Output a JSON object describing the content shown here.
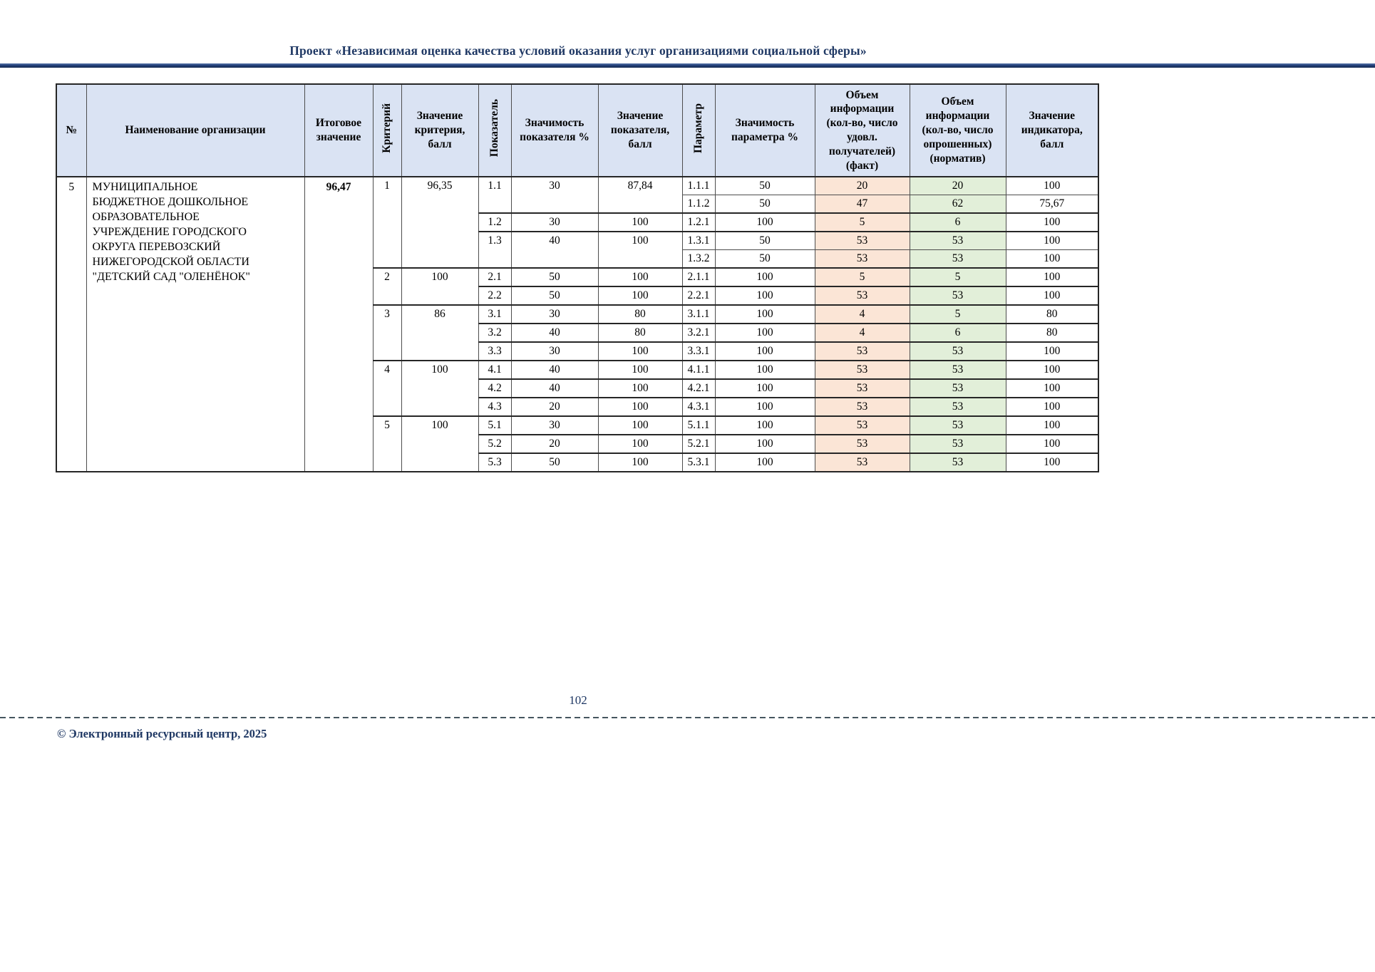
{
  "page": {
    "header_title": "Проект «Независимая оценка качества условий оказания услуг организациями социальной сферы»",
    "page_number": "102",
    "footer_copyright": "© Электронный ресурсный центр, 2025"
  },
  "colors": {
    "title_text": "#1f3864",
    "header_bg": "#dae3f3",
    "fact_column_bg": "#fbe5d6",
    "norm_column_bg": "#e2efd9",
    "rule_navy": "#24407a"
  },
  "table": {
    "columns": [
      {
        "key": "num",
        "label": "№",
        "vertical": false
      },
      {
        "key": "org-name",
        "label": "Наименование организации",
        "vertical": false
      },
      {
        "key": "total-value",
        "label": "Итоговое значение",
        "vertical": false
      },
      {
        "key": "criterion",
        "label": "Критерий",
        "vertical": true
      },
      {
        "key": "criterion-value",
        "label": "Значение критерия, балл",
        "vertical": false
      },
      {
        "key": "indicator",
        "label": "Показатель",
        "vertical": true
      },
      {
        "key": "indicator-weight",
        "label": "Значимость показателя %",
        "vertical": false
      },
      {
        "key": "indicator-value",
        "label": "Значение показателя, балл",
        "vertical": false
      },
      {
        "key": "parameter",
        "label": "Параметр",
        "vertical": true
      },
      {
        "key": "parameter-weight",
        "label": "Значимость параметра %",
        "vertical": false
      },
      {
        "key": "info-volume-fact",
        "label": "Объем информации (кол-во, число удовл. получателей) (факт)",
        "vertical": false
      },
      {
        "key": "info-volume-norm",
        "label": "Объем информации (кол-во, число опрошенных) (норматив)",
        "vertical": false
      },
      {
        "key": "indicator-score",
        "label": "Значение индикатора, балл",
        "vertical": false
      }
    ],
    "rows": [
      {
        "cells": [
          {
            "c": 0,
            "v": "5",
            "rs": 16
          },
          {
            "c": 1,
            "v": "МУНИЦИПАЛЬНОЕ\nБЮДЖЕТНОЕ ДОШКОЛЬНОЕ\nОБРАЗОВАТЕЛЬНОЕ\nУЧРЕЖДЕНИЕ ГОРОДСКОГО\nОКРУГА ПЕРЕВОЗСКИЙ\nНИЖЕГОРОДСКОЙ ОБЛАСТИ\n\"ДЕТСКИЙ САД \"ОЛЕНЁНОК\"",
            "rs": 16
          },
          {
            "c": 2,
            "v": "96,47",
            "rs": 16
          },
          {
            "c": 3,
            "v": "1",
            "rs": 5
          },
          {
            "c": 4,
            "v": "96,35",
            "rs": 5
          },
          {
            "c": 5,
            "v": "1.1",
            "rs": 2
          },
          {
            "c": 6,
            "v": "30",
            "rs": 2
          },
          {
            "c": 7,
            "v": "87,84",
            "rs": 2
          },
          {
            "c": 8,
            "v": "1.1.1"
          },
          {
            "c": 9,
            "v": "50"
          },
          {
            "c": 10,
            "v": "20"
          },
          {
            "c": 11,
            "v": "20"
          },
          {
            "c": 12,
            "v": "100"
          }
        ]
      },
      {
        "cells": [
          {
            "c": 8,
            "v": "1.1.2"
          },
          {
            "c": 9,
            "v": "50"
          },
          {
            "c": 10,
            "v": "47"
          },
          {
            "c": 11,
            "v": "62"
          },
          {
            "c": 12,
            "v": "75,67"
          }
        ]
      },
      {
        "sep": "heavy",
        "cells": [
          {
            "c": 5,
            "v": "1.2"
          },
          {
            "c": 6,
            "v": "30"
          },
          {
            "c": 7,
            "v": "100"
          },
          {
            "c": 8,
            "v": "1.2.1"
          },
          {
            "c": 9,
            "v": "100"
          },
          {
            "c": 10,
            "v": "5"
          },
          {
            "c": 11,
            "v": "6"
          },
          {
            "c": 12,
            "v": "100"
          }
        ]
      },
      {
        "sep": "heavy",
        "cells": [
          {
            "c": 5,
            "v": "1.3",
            "rs": 2
          },
          {
            "c": 6,
            "v": "40",
            "rs": 2
          },
          {
            "c": 7,
            "v": "100",
            "rs": 2
          },
          {
            "c": 8,
            "v": "1.3.1"
          },
          {
            "c": 9,
            "v": "50"
          },
          {
            "c": 10,
            "v": "53"
          },
          {
            "c": 11,
            "v": "53"
          },
          {
            "c": 12,
            "v": "100"
          }
        ]
      },
      {
        "cells": [
          {
            "c": 8,
            "v": "1.3.2"
          },
          {
            "c": 9,
            "v": "50"
          },
          {
            "c": 10,
            "v": "53"
          },
          {
            "c": 11,
            "v": "53"
          },
          {
            "c": 12,
            "v": "100"
          }
        ]
      },
      {
        "sep": "heavy",
        "cells": [
          {
            "c": 3,
            "v": "2",
            "rs": 2
          },
          {
            "c": 4,
            "v": "100",
            "rs": 2
          },
          {
            "c": 5,
            "v": "2.1"
          },
          {
            "c": 6,
            "v": "50"
          },
          {
            "c": 7,
            "v": "100"
          },
          {
            "c": 8,
            "v": "2.1.1"
          },
          {
            "c": 9,
            "v": "100"
          },
          {
            "c": 10,
            "v": "5"
          },
          {
            "c": 11,
            "v": "5"
          },
          {
            "c": 12,
            "v": "100"
          }
        ]
      },
      {
        "sep": "heavy",
        "cells": [
          {
            "c": 5,
            "v": "2.2"
          },
          {
            "c": 6,
            "v": "50"
          },
          {
            "c": 7,
            "v": "100"
          },
          {
            "c": 8,
            "v": "2.2.1"
          },
          {
            "c": 9,
            "v": "100"
          },
          {
            "c": 10,
            "v": "53"
          },
          {
            "c": 11,
            "v": "53"
          },
          {
            "c": 12,
            "v": "100"
          }
        ]
      },
      {
        "sep": "heavy",
        "cells": [
          {
            "c": 3,
            "v": "3",
            "rs": 3
          },
          {
            "c": 4,
            "v": "86",
            "rs": 3
          },
          {
            "c": 5,
            "v": "3.1"
          },
          {
            "c": 6,
            "v": "30"
          },
          {
            "c": 7,
            "v": "80"
          },
          {
            "c": 8,
            "v": "3.1.1"
          },
          {
            "c": 9,
            "v": "100"
          },
          {
            "c": 10,
            "v": "4"
          },
          {
            "c": 11,
            "v": "5"
          },
          {
            "c": 12,
            "v": "80"
          }
        ]
      },
      {
        "sep": "heavy",
        "cells": [
          {
            "c": 5,
            "v": "3.2"
          },
          {
            "c": 6,
            "v": "40"
          },
          {
            "c": 7,
            "v": "80"
          },
          {
            "c": 8,
            "v": "3.2.1"
          },
          {
            "c": 9,
            "v": "100"
          },
          {
            "c": 10,
            "v": "4"
          },
          {
            "c": 11,
            "v": "6"
          },
          {
            "c": 12,
            "v": "80"
          }
        ]
      },
      {
        "sep": "heavy",
        "cells": [
          {
            "c": 5,
            "v": "3.3"
          },
          {
            "c": 6,
            "v": "30"
          },
          {
            "c": 7,
            "v": "100"
          },
          {
            "c": 8,
            "v": "3.3.1"
          },
          {
            "c": 9,
            "v": "100"
          },
          {
            "c": 10,
            "v": "53"
          },
          {
            "c": 11,
            "v": "53"
          },
          {
            "c": 12,
            "v": "100"
          }
        ]
      },
      {
        "sep": "heavy",
        "cells": [
          {
            "c": 3,
            "v": "4",
            "rs": 3
          },
          {
            "c": 4,
            "v": "100",
            "rs": 3
          },
          {
            "c": 5,
            "v": "4.1"
          },
          {
            "c": 6,
            "v": "40"
          },
          {
            "c": 7,
            "v": "100"
          },
          {
            "c": 8,
            "v": "4.1.1"
          },
          {
            "c": 9,
            "v": "100"
          },
          {
            "c": 10,
            "v": "53"
          },
          {
            "c": 11,
            "v": "53"
          },
          {
            "c": 12,
            "v": "100"
          }
        ]
      },
      {
        "sep": "heavy",
        "cells": [
          {
            "c": 5,
            "v": "4.2"
          },
          {
            "c": 6,
            "v": "40"
          },
          {
            "c": 7,
            "v": "100"
          },
          {
            "c": 8,
            "v": "4.2.1"
          },
          {
            "c": 9,
            "v": "100"
          },
          {
            "c": 10,
            "v": "53"
          },
          {
            "c": 11,
            "v": "53"
          },
          {
            "c": 12,
            "v": "100"
          }
        ]
      },
      {
        "sep": "heavy",
        "cells": [
          {
            "c": 5,
            "v": "4.3"
          },
          {
            "c": 6,
            "v": "20"
          },
          {
            "c": 7,
            "v": "100"
          },
          {
            "c": 8,
            "v": "4.3.1"
          },
          {
            "c": 9,
            "v": "100"
          },
          {
            "c": 10,
            "v": "53"
          },
          {
            "c": 11,
            "v": "53"
          },
          {
            "c": 12,
            "v": "100"
          }
        ]
      },
      {
        "sep": "heavy",
        "cells": [
          {
            "c": 3,
            "v": "5",
            "rs": 3
          },
          {
            "c": 4,
            "v": "100",
            "rs": 3
          },
          {
            "c": 5,
            "v": "5.1"
          },
          {
            "c": 6,
            "v": "30"
          },
          {
            "c": 7,
            "v": "100"
          },
          {
            "c": 8,
            "v": "5.1.1"
          },
          {
            "c": 9,
            "v": "100"
          },
          {
            "c": 10,
            "v": "53"
          },
          {
            "c": 11,
            "v": "53"
          },
          {
            "c": 12,
            "v": "100"
          }
        ]
      },
      {
        "sep": "heavy",
        "cells": [
          {
            "c": 5,
            "v": "5.2"
          },
          {
            "c": 6,
            "v": "20"
          },
          {
            "c": 7,
            "v": "100"
          },
          {
            "c": 8,
            "v": "5.2.1"
          },
          {
            "c": 9,
            "v": "100"
          },
          {
            "c": 10,
            "v": "53"
          },
          {
            "c": 11,
            "v": "53"
          },
          {
            "c": 12,
            "v": "100"
          }
        ]
      },
      {
        "sep": "heavy",
        "cells": [
          {
            "c": 5,
            "v": "5.3"
          },
          {
            "c": 6,
            "v": "50"
          },
          {
            "c": 7,
            "v": "100"
          },
          {
            "c": 8,
            "v": "5.3.1"
          },
          {
            "c": 9,
            "v": "100"
          },
          {
            "c": 10,
            "v": "53"
          },
          {
            "c": 11,
            "v": "53"
          },
          {
            "c": 12,
            "v": "100"
          }
        ]
      }
    ]
  }
}
